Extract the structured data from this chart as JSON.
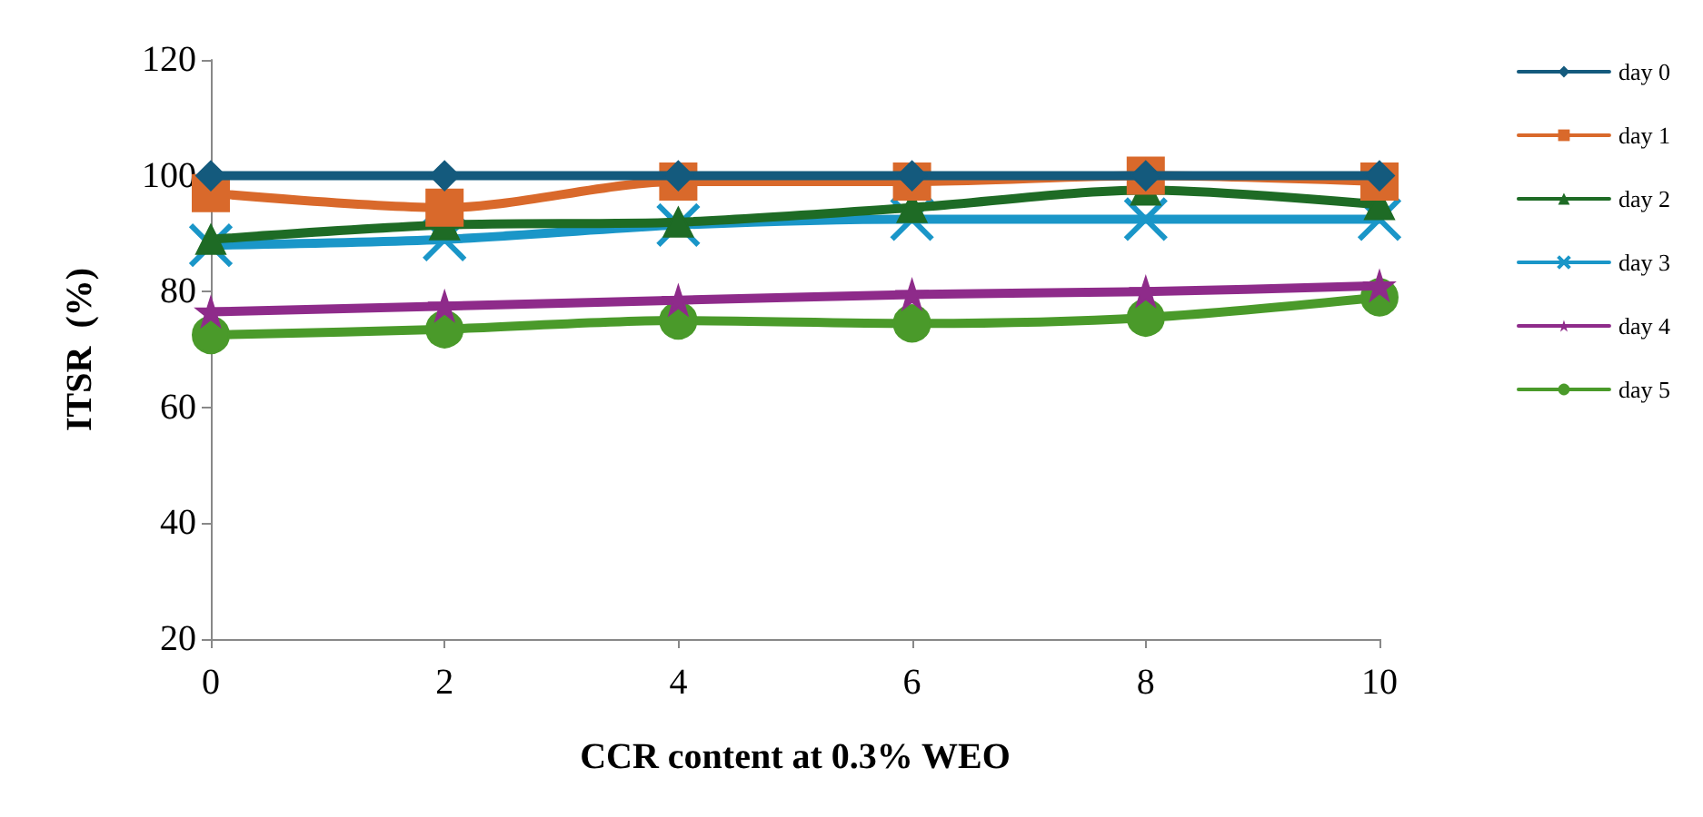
{
  "chart_data": {
    "type": "line",
    "xlabel": "CCR content at 0.3% WEO",
    "ylabel": "ITSR  (%)",
    "x": [
      0,
      2,
      4,
      6,
      8,
      10
    ],
    "xlim": [
      0,
      10
    ],
    "xticks": [
      0,
      2,
      4,
      6,
      8,
      10
    ],
    "ylim": [
      20,
      120
    ],
    "yticks": [
      20,
      40,
      60,
      80,
      100,
      120
    ],
    "grid": false,
    "legend": "right",
    "line_style": "solid",
    "series": [
      {
        "name": "day 0",
        "color": "#145a7d",
        "marker": "diamond",
        "values": [
          100,
          100,
          100,
          100,
          100,
          100
        ]
      },
      {
        "name": "day 1",
        "color": "#d9692b",
        "marker": "square",
        "values": [
          97,
          94.5,
          99,
          99,
          100,
          99
        ]
      },
      {
        "name": "day 2",
        "color": "#1e6b25",
        "marker": "triangle",
        "values": [
          89,
          91.5,
          92,
          94.5,
          97.5,
          95
        ]
      },
      {
        "name": "day 3",
        "color": "#1a96c8",
        "marker": "cross",
        "values": [
          88,
          89,
          91.5,
          92.5,
          92.5,
          92.5
        ]
      },
      {
        "name": "day 4",
        "color": "#8e2b8a",
        "marker": "star",
        "values": [
          76.5,
          77.5,
          78.5,
          79.5,
          80,
          81
        ]
      },
      {
        "name": "day 5",
        "color": "#4a9a2a",
        "marker": "circle",
        "values": [
          72.5,
          73.5,
          75,
          74.5,
          75.5,
          79
        ]
      }
    ]
  }
}
